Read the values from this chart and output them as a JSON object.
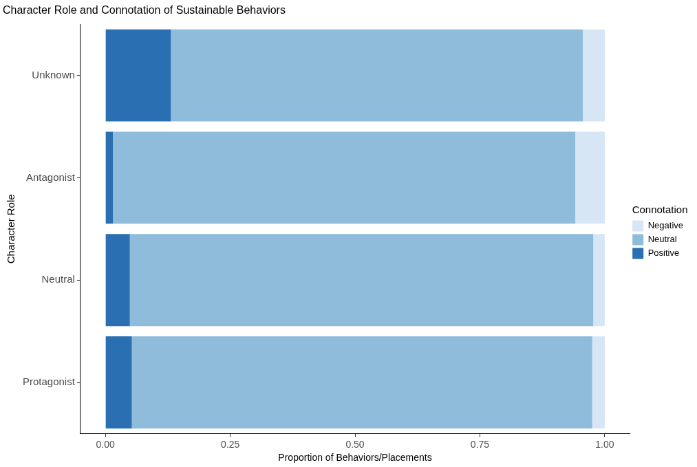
{
  "chart_data": {
    "type": "bar",
    "orientation": "horizontal",
    "stacked": true,
    "title": "Character Role and Connotation of Sustainable Behaviors",
    "xlabel": "Proportion of Behaviors/Placements",
    "ylabel": "Character Role",
    "legend_title": "Connotation",
    "legend": "right",
    "grid": false,
    "categories": [
      "Unknown",
      "Antagonist",
      "Neutral",
      "Protagonist"
    ],
    "series": [
      {
        "name": "Positive",
        "color": "#2a6fb2",
        "values": [
          0.131,
          0.015,
          0.049,
          0.053
        ]
      },
      {
        "name": "Neutral",
        "color": "#8fbcdb",
        "values": [
          0.825,
          0.926,
          0.928,
          0.922
        ]
      },
      {
        "name": "Negative",
        "color": "#d6e6f4",
        "values": [
          0.044,
          0.059,
          0.023,
          0.025
        ]
      }
    ],
    "xlim": [
      -0.05,
      1.05
    ],
    "xticks": [
      {
        "value": 0,
        "label": "0.00"
      },
      {
        "value": 0.25,
        "label": "0.25"
      },
      {
        "value": 0.5,
        "label": "0.50"
      },
      {
        "value": 0.75,
        "label": "0.75"
      },
      {
        "value": 1,
        "label": "1.00"
      }
    ]
  }
}
